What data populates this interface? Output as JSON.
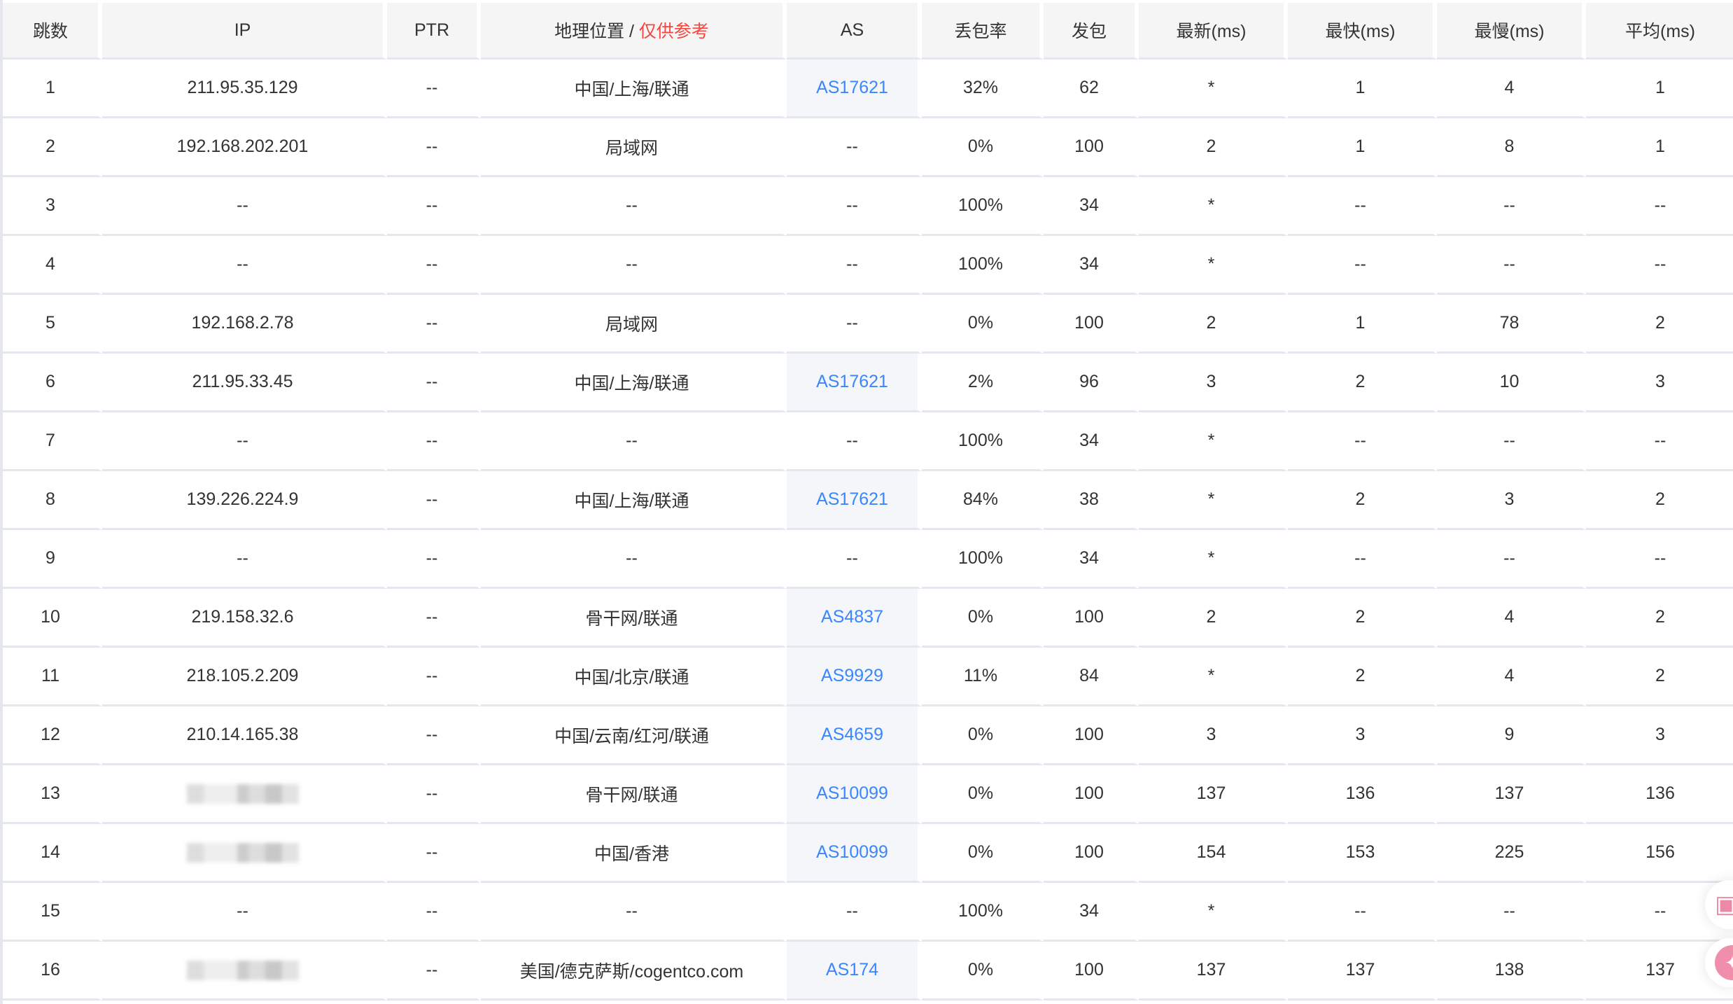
{
  "headers": {
    "hop": "跳数",
    "ip": "IP",
    "ptr": "PTR",
    "geo": "地理位置 / ",
    "geo_note": "仅供参考",
    "as": "AS",
    "loss": "丢包率",
    "sent": "发包",
    "last": "最新(ms)",
    "best": "最快(ms)",
    "worst": "最慢(ms)",
    "avg": "平均(ms)"
  },
  "colors": {
    "link": "#3a86ff",
    "note": "#f5463f",
    "header_bg": "#f5f5f5"
  },
  "rows": [
    {
      "hop": "1",
      "ip": "211.95.35.129",
      "ptr": "--",
      "geo": "中国/上海/联通",
      "as": "AS17621",
      "loss": "32%",
      "sent": "62",
      "last": "*",
      "best": "1",
      "worst": "4",
      "avg": "1"
    },
    {
      "hop": "2",
      "ip": "192.168.202.201",
      "ptr": "--",
      "geo": "局域网",
      "as": "--",
      "loss": "0%",
      "sent": "100",
      "last": "2",
      "best": "1",
      "worst": "8",
      "avg": "1"
    },
    {
      "hop": "3",
      "ip": "--",
      "ptr": "--",
      "geo": "--",
      "as": "--",
      "loss": "100%",
      "sent": "34",
      "last": "*",
      "best": "--",
      "worst": "--",
      "avg": "--"
    },
    {
      "hop": "4",
      "ip": "--",
      "ptr": "--",
      "geo": "--",
      "as": "--",
      "loss": "100%",
      "sent": "34",
      "last": "*",
      "best": "--",
      "worst": "--",
      "avg": "--"
    },
    {
      "hop": "5",
      "ip": "192.168.2.78",
      "ptr": "--",
      "geo": "局域网",
      "as": "--",
      "loss": "0%",
      "sent": "100",
      "last": "2",
      "best": "1",
      "worst": "78",
      "avg": "2"
    },
    {
      "hop": "6",
      "ip": "211.95.33.45",
      "ptr": "--",
      "geo": "中国/上海/联通",
      "as": "AS17621",
      "loss": "2%",
      "sent": "96",
      "last": "3",
      "best": "2",
      "worst": "10",
      "avg": "3"
    },
    {
      "hop": "7",
      "ip": "--",
      "ptr": "--",
      "geo": "--",
      "as": "--",
      "loss": "100%",
      "sent": "34",
      "last": "*",
      "best": "--",
      "worst": "--",
      "avg": "--"
    },
    {
      "hop": "8",
      "ip": "139.226.224.9",
      "ptr": "--",
      "geo": "中国/上海/联通",
      "as": "AS17621",
      "loss": "84%",
      "sent": "38",
      "last": "*",
      "best": "2",
      "worst": "3",
      "avg": "2"
    },
    {
      "hop": "9",
      "ip": "--",
      "ptr": "--",
      "geo": "--",
      "as": "--",
      "loss": "100%",
      "sent": "34",
      "last": "*",
      "best": "--",
      "worst": "--",
      "avg": "--"
    },
    {
      "hop": "10",
      "ip": "219.158.32.6",
      "ptr": "--",
      "geo": "骨干网/联通",
      "as": "AS4837",
      "loss": "0%",
      "sent": "100",
      "last": "2",
      "best": "2",
      "worst": "4",
      "avg": "2"
    },
    {
      "hop": "11",
      "ip": "218.105.2.209",
      "ptr": "--",
      "geo": "中国/北京/联通",
      "as": "AS9929",
      "loss": "11%",
      "sent": "84",
      "last": "*",
      "best": "2",
      "worst": "4",
      "avg": "2"
    },
    {
      "hop": "12",
      "ip": "210.14.165.38",
      "ptr": "--",
      "geo": "中国/云南/红河/联通",
      "as": "AS4659",
      "loss": "0%",
      "sent": "100",
      "last": "3",
      "best": "3",
      "worst": "9",
      "avg": "3"
    },
    {
      "hop": "13",
      "ip": null,
      "ptr": "--",
      "geo": "骨干网/联通",
      "as": "AS10099",
      "loss": "0%",
      "sent": "100",
      "last": "137",
      "best": "136",
      "worst": "137",
      "avg": "136"
    },
    {
      "hop": "14",
      "ip": null,
      "ptr": "--",
      "geo": "中国/香港",
      "as": "AS10099",
      "loss": "0%",
      "sent": "100",
      "last": "154",
      "best": "153",
      "worst": "225",
      "avg": "156"
    },
    {
      "hop": "15",
      "ip": "--",
      "ptr": "--",
      "geo": "--",
      "as": "--",
      "loss": "100%",
      "sent": "34",
      "last": "*",
      "best": "--",
      "worst": "--",
      "avg": "--"
    },
    {
      "hop": "16",
      "ip": null,
      "ptr": "--",
      "geo": "美国/德克萨斯/cogentco.com",
      "as": "AS174",
      "loss": "0%",
      "sent": "100",
      "last": "137",
      "best": "137",
      "worst": "138",
      "avg": "137"
    }
  ],
  "floating": [
    {
      "icon": "apps-sparkle-icon"
    },
    {
      "icon": "ai-assistant-icon"
    }
  ]
}
